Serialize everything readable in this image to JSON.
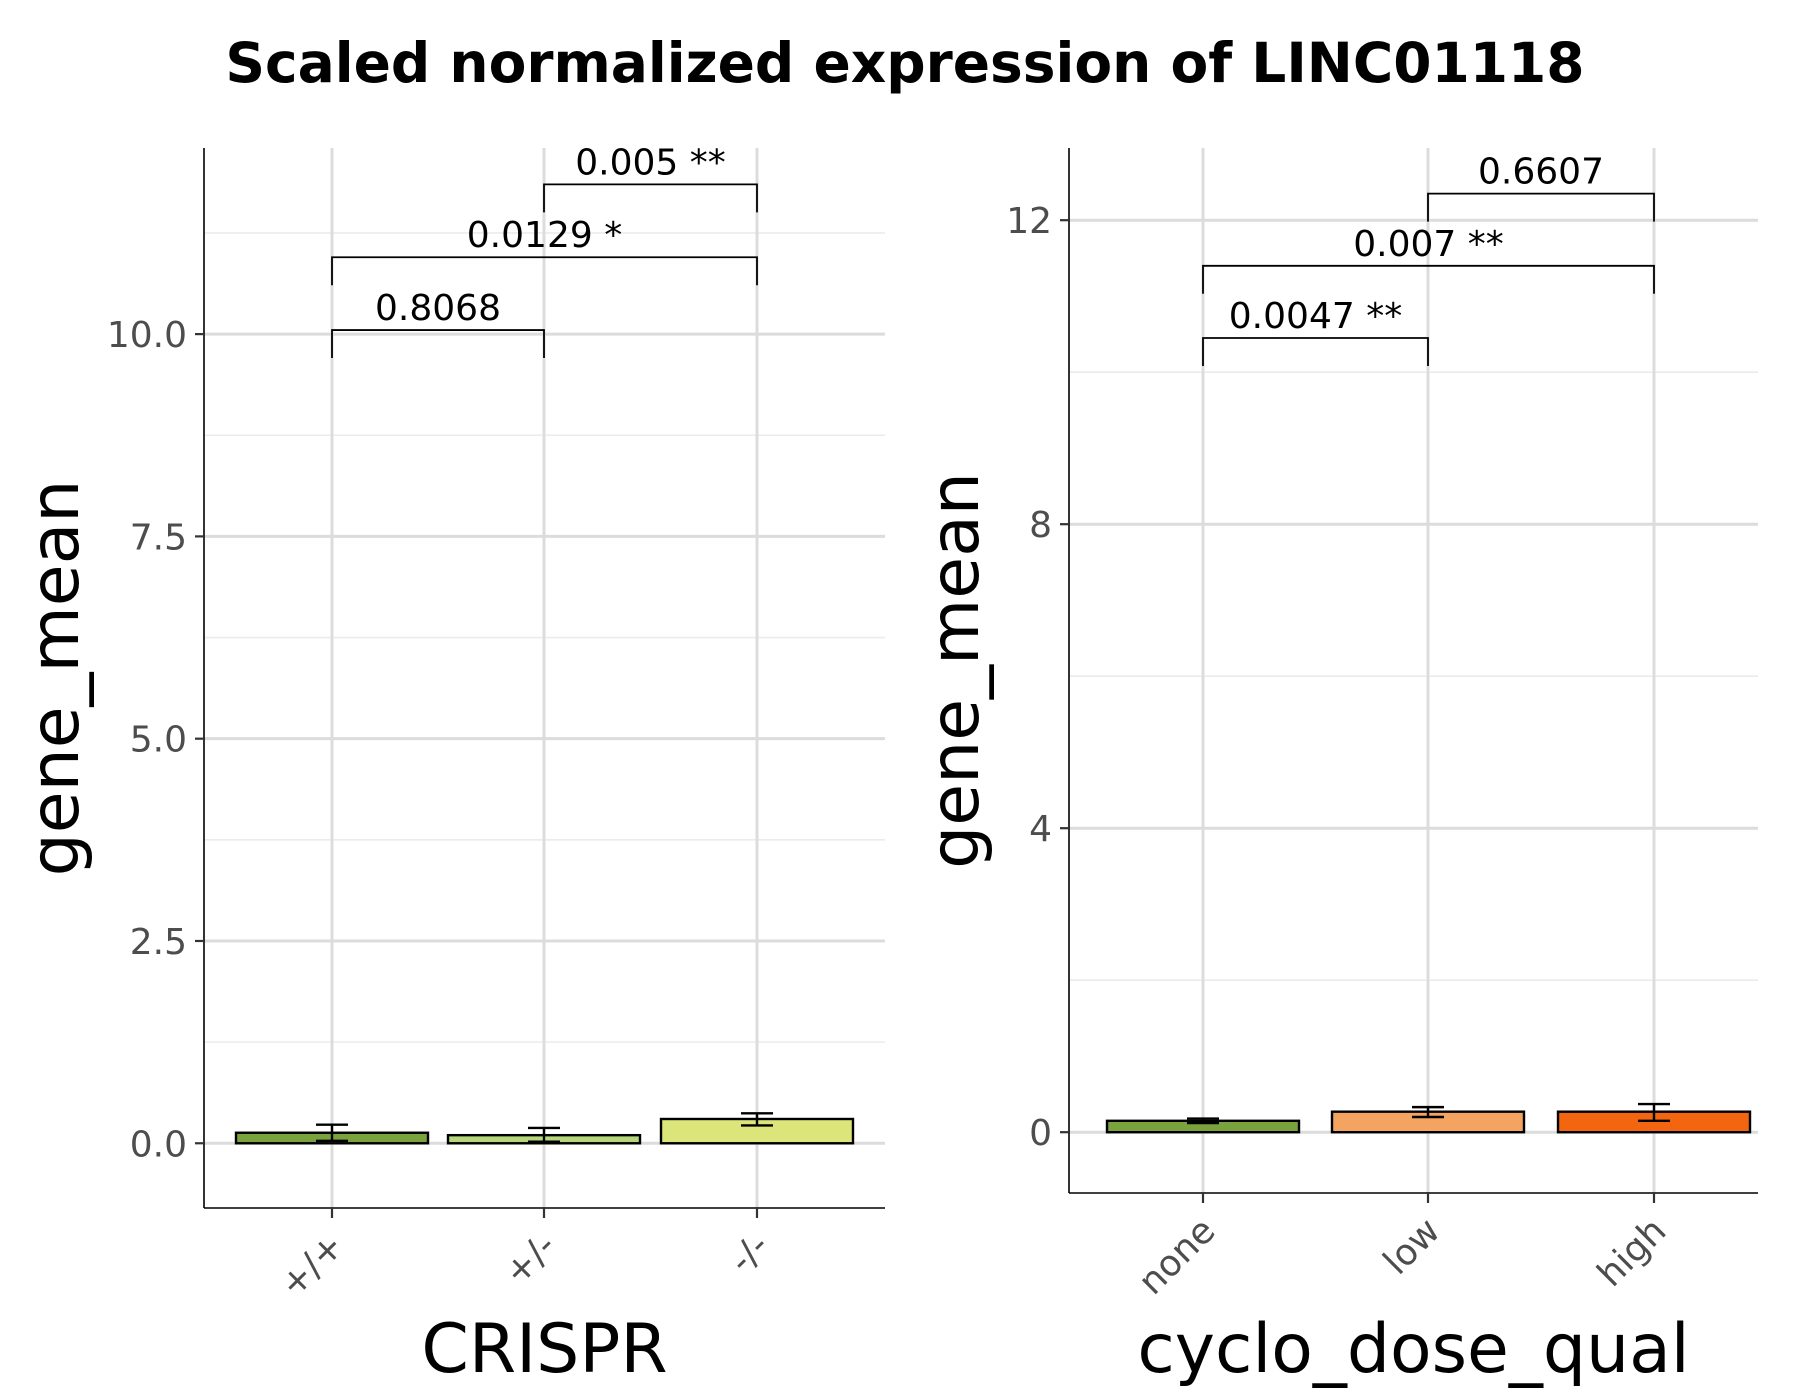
{
  "figure": {
    "title": "Scaled normalized expression of LINC01118"
  },
  "chart_data": [
    {
      "type": "bar",
      "xlabel": "CRISPR",
      "ylabel": "gene_mean",
      "categories": [
        "+/+",
        "+/-",
        "-/-"
      ],
      "values": [
        0.13,
        0.1,
        0.3
      ],
      "error": [
        [
          0.03,
          0.23
        ],
        [
          0.02,
          0.19
        ],
        [
          0.22,
          0.37
        ]
      ],
      "colors": [
        "#7aa33e",
        "#b5d67a",
        "#dbe57a"
      ],
      "ylim": [
        -0.8,
        12.3
      ],
      "major_ticks": [
        0,
        2.5,
        5,
        7.5,
        10
      ],
      "tick_labels": [
        "0.0",
        "2.5",
        "5.0",
        "7.5",
        "10.0"
      ],
      "minor_ticks": [
        1.25,
        3.75,
        6.25,
        8.75,
        11.25
      ],
      "comparisons": [
        {
          "from": 0,
          "to": 1,
          "y": 10.05,
          "label": "0.8068"
        },
        {
          "from": 0,
          "to": 2,
          "y": 10.95,
          "label": "0.0129 *"
        },
        {
          "from": 1,
          "to": 2,
          "y": 11.85,
          "label": "0.005 **"
        }
      ],
      "grid": true
    },
    {
      "type": "bar",
      "xlabel": "cyclo_dose_qual",
      "ylabel": "gene_mean",
      "categories": [
        "none",
        "low",
        "high"
      ],
      "values": [
        0.15,
        0.27,
        0.27
      ],
      "error": [
        [
          0.12,
          0.18
        ],
        [
          0.2,
          0.33
        ],
        [
          0.15,
          0.37
        ]
      ],
      "colors": [
        "#7aa33e",
        "#f4a460",
        "#f4650f"
      ],
      "ylim": [
        -0.8,
        12.95
      ],
      "major_ticks": [
        0,
        4,
        8,
        12
      ],
      "tick_labels": [
        "0",
        "4",
        "8",
        "12"
      ],
      "minor_ticks": [
        2,
        6,
        10
      ],
      "comparisons": [
        {
          "from": 0,
          "to": 1,
          "y": 10.45,
          "label": "0.0047 **"
        },
        {
          "from": 0,
          "to": 2,
          "y": 11.4,
          "label": "0.007 **"
        },
        {
          "from": 1,
          "to": 2,
          "y": 12.35,
          "label": "0.6607"
        }
      ],
      "grid": true
    }
  ]
}
